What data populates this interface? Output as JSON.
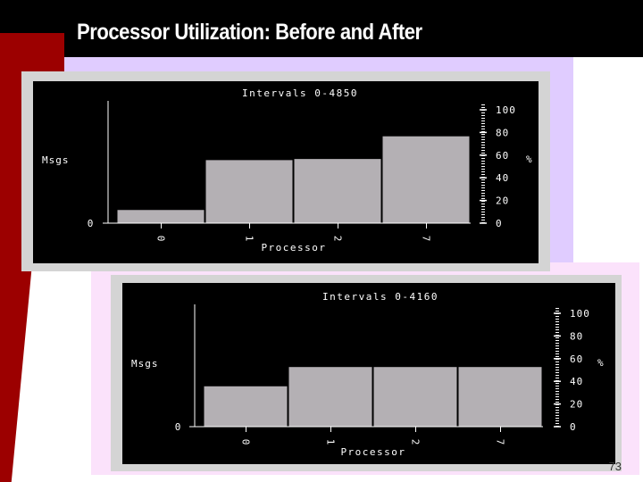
{
  "slide": {
    "title": "Processor Utilization: Before and After",
    "page_number": "73"
  },
  "colors": {
    "bar_fill": "#b4b0b4",
    "chart_bg": "#000000",
    "frame_bg": "#d4d4d4",
    "text": "#ffffff",
    "title_bar": "#000000",
    "maroon": "#9c0000",
    "lavender": "#e0ccff",
    "pink": "#fbe2fb"
  },
  "chart_data": [
    {
      "type": "bar",
      "title": "Intervals 0-4850",
      "categories": [
        "0",
        "1",
        "2",
        "7"
      ],
      "values": [
        12,
        56,
        57,
        77
      ],
      "xlabel": "Processor",
      "ylabel_left": "Msgs",
      "y_left_ticks": [
        "0"
      ],
      "ylabel_right": "%",
      "y_right_ticks": [
        "0",
        "20",
        "40",
        "60",
        "80",
        "100"
      ],
      "ylim": [
        0,
        100
      ],
      "grid": false
    },
    {
      "type": "bar",
      "title": "Intervals 0-4160",
      "categories": [
        "0",
        "1",
        "2",
        "7"
      ],
      "values": [
        36,
        53,
        53,
        53
      ],
      "xlabel": "Processor",
      "ylabel_left": "Msgs",
      "y_left_ticks": [
        "0"
      ],
      "ylabel_right": "%",
      "y_right_ticks": [
        "0",
        "20",
        "40",
        "60",
        "80",
        "100"
      ],
      "ylim": [
        0,
        100
      ],
      "grid": false
    }
  ]
}
